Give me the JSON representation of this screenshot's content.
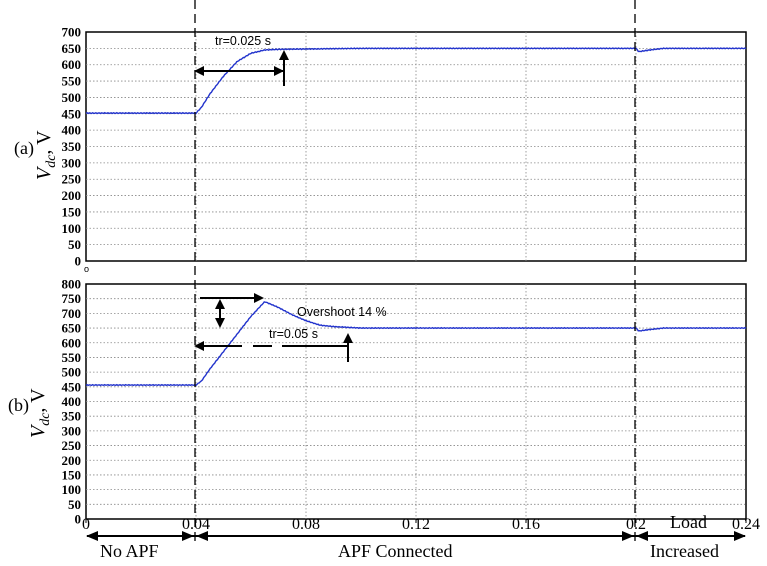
{
  "chart_data": [
    {
      "type": "line",
      "panel_label": "(a)",
      "ylabel_main": "V",
      "ylabel_sub": "dc",
      "ylabel_unit": ", V",
      "ylim": [
        0,
        700
      ],
      "yticks": [
        "0",
        "50",
        "100",
        "150",
        "200",
        "250",
        "300",
        "350",
        "400",
        "450",
        "500",
        "550",
        "600",
        "650",
        "700"
      ],
      "grid": true,
      "series": [
        {
          "color": "#2233cc",
          "x": [
            0,
            0.04,
            0.042,
            0.045,
            0.05,
            0.055,
            0.06,
            0.065,
            0.07,
            0.08,
            0.1,
            0.15,
            0.2,
            0.201,
            0.205,
            0.21,
            0.24
          ],
          "y": [
            452,
            452,
            470,
            510,
            565,
            610,
            635,
            645,
            647,
            648,
            650,
            650,
            650,
            640,
            645,
            650,
            650
          ]
        }
      ],
      "annotations": [
        {
          "text": "tr=0.025 s"
        }
      ]
    },
    {
      "type": "line",
      "panel_label": "(b)",
      "ylabel_main": "V",
      "ylabel_sub": "dc",
      "ylabel_unit": ", V",
      "ylim": [
        0,
        800
      ],
      "yticks": [
        "0",
        "50",
        "100",
        "150",
        "200",
        "250",
        "300",
        "350",
        "400",
        "450",
        "500",
        "550",
        "600",
        "650",
        "700",
        "750",
        "800"
      ],
      "grid": true,
      "series": [
        {
          "color": "#2233cc",
          "x": [
            0,
            0.04,
            0.042,
            0.045,
            0.05,
            0.055,
            0.06,
            0.065,
            0.07,
            0.075,
            0.08,
            0.085,
            0.09,
            0.1,
            0.15,
            0.2,
            0.201,
            0.205,
            0.21,
            0.24
          ],
          "y": [
            456,
            456,
            470,
            510,
            570,
            630,
            690,
            740,
            720,
            695,
            675,
            660,
            655,
            650,
            650,
            650,
            640,
            645,
            650,
            650
          ]
        }
      ],
      "annotations": [
        {
          "text": "Overshoot  14 %"
        },
        {
          "text": "tr=0.05 s"
        }
      ]
    }
  ],
  "x_axis": {
    "ticks": [
      {
        "value": 0,
        "label": "0"
      },
      {
        "value": 0.04,
        "label": "0.04"
      },
      {
        "value": 0.08,
        "label": "0.08"
      },
      {
        "value": 0.12,
        "label": "0.12"
      },
      {
        "value": 0.16,
        "label": "0.16"
      },
      {
        "value": 0.2,
        "label": "0.2"
      },
      {
        "value": 0.24,
        "label": "0.24"
      }
    ],
    "xlim": [
      0,
      0.24
    ]
  },
  "phases": [
    {
      "label": "No APF",
      "from": 0,
      "to": 0.04
    },
    {
      "label": "APF Connected",
      "from": 0.04,
      "to": 0.2
    },
    {
      "label_top": "Load",
      "label": "Increased",
      "from": 0.2,
      "to": 0.24
    }
  ],
  "bottom_left_mark": "o"
}
